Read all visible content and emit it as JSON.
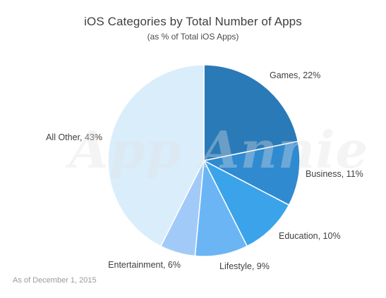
{
  "chart_data": {
    "type": "pie",
    "title": "iOS Categories by Total Number of Apps",
    "subtitle": "(as % of Total iOS Apps)",
    "unit": "%",
    "slices": [
      {
        "label": "Games, 22%",
        "category": "Games",
        "value": 22,
        "color": "#2a7ab8"
      },
      {
        "label": "Business, 11%",
        "category": "Business",
        "value": 11,
        "color": "#2f8ad0"
      },
      {
        "label": "Education, 10%",
        "category": "Education",
        "value": 10,
        "color": "#3aa3ea"
      },
      {
        "label": "Lifestyle, 9%",
        "category": "Lifestyle",
        "value": 9,
        "color": "#6bb5f5"
      },
      {
        "label": "Entertainment, 6%",
        "category": "Entertainment",
        "value": 6,
        "color": "#a2caf9"
      },
      {
        "label": "All Other, 43%",
        "category": "All Other",
        "value": 43,
        "color": "#daedfb"
      }
    ],
    "start": "12 o'clock",
    "direction": "clockwise",
    "legend": "none (labels outside slices)"
  },
  "watermark": "App Annie",
  "footnote": "As of December 1, 2015"
}
